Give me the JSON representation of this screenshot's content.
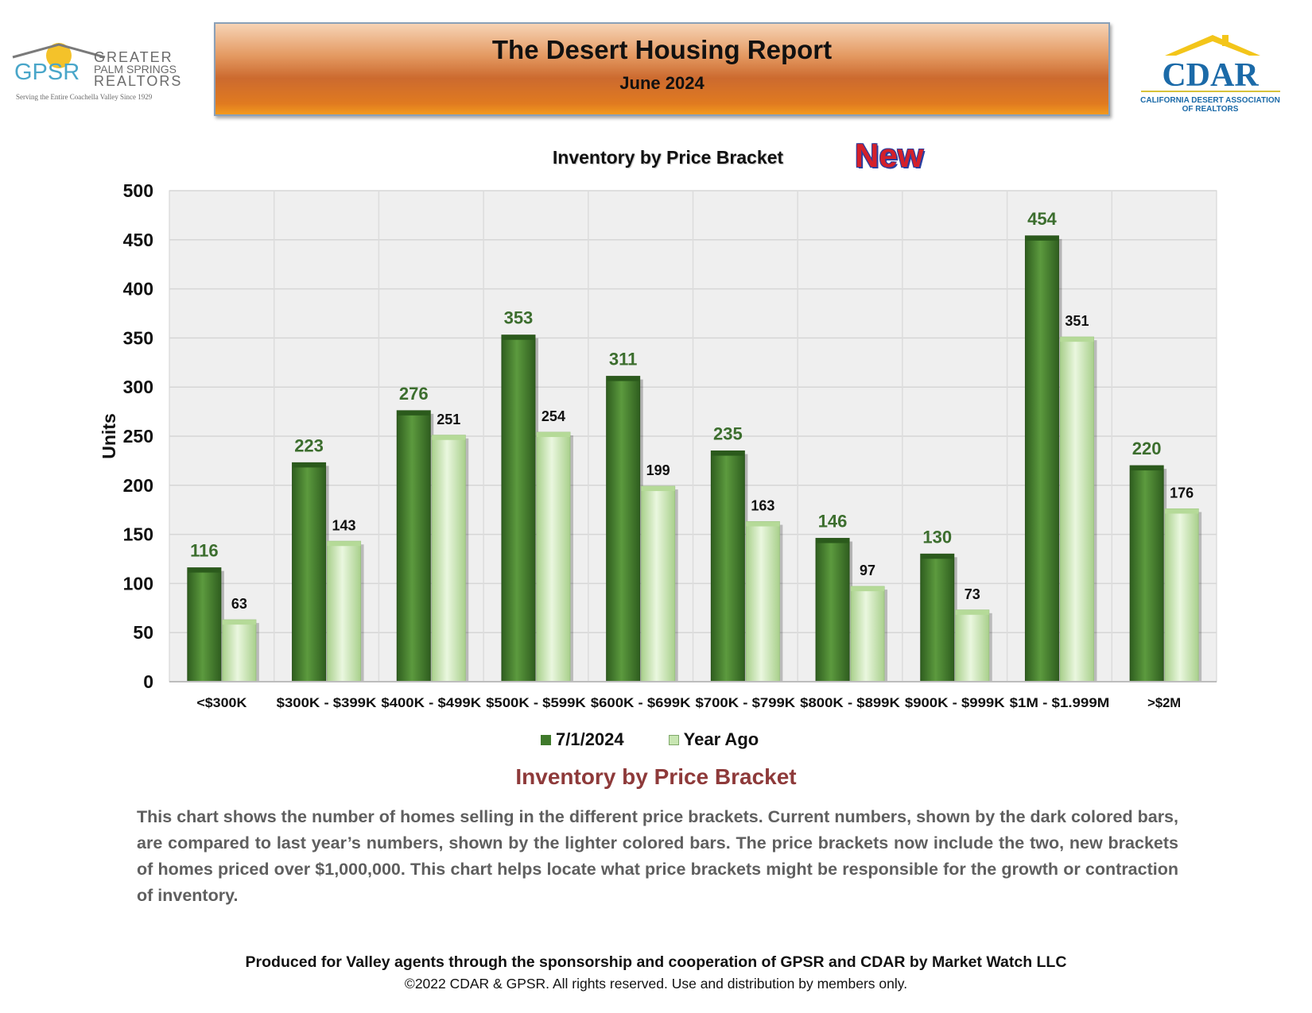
{
  "header": {
    "title": "The Desert Housing Report",
    "subtitle": "June 2024",
    "new_badge": "New"
  },
  "logos": {
    "left_abbrev": "GPSR",
    "left_line1": "GREATER",
    "left_line2": "PALM SPRINGS",
    "left_line3": "REALTORS",
    "left_tagline": "Serving the Entire Coachella Valley Since 1929",
    "right_abbrev": "CDAR",
    "right_line1": "CALIFORNIA DESERT ASSOCIATION",
    "right_line2": "OF REALTORS"
  },
  "chart_data": {
    "type": "bar",
    "title": "Inventory by Price Bracket",
    "xlabel": "",
    "ylabel": "Units",
    "ylim": [
      0,
      500
    ],
    "yticks": [
      0,
      50,
      100,
      150,
      200,
      250,
      300,
      350,
      400,
      450,
      500
    ],
    "grid": true,
    "legend_position": "bottom",
    "categories": [
      "<$300K",
      "$300K - $399K",
      "$400K - $499K",
      "$500K - $599K",
      "$600K - $699K",
      "$700K - $799K",
      "$800K - $899K",
      "$900K - $999K",
      "$1M - $1.999M",
      ">$2M"
    ],
    "series": [
      {
        "name": "7/1/2024",
        "values": [
          116,
          223,
          276,
          353,
          311,
          235,
          146,
          130,
          454,
          220
        ]
      },
      {
        "name": "Year Ago",
        "values": [
          63,
          143,
          251,
          254,
          199,
          163,
          97,
          73,
          351,
          176
        ]
      }
    ]
  },
  "colors": {
    "current_dark": "#3f7a2b",
    "current_mid": "#5c9a3e",
    "year_ago_light": "#c8e6b2",
    "year_ago_edge": "#e9f6de",
    "current_label": "#3c6e2e",
    "plot_bg": "#efefef",
    "heading": "#8e3a3a"
  },
  "description": {
    "heading": "Inventory by Price Bracket",
    "text": "This chart shows the number of homes selling in the different price brackets. Current numbers, shown by the dark colored bars, are compared to last year’s numbers, shown by the lighter colored bars. The price brackets now include the two, new brackets of homes priced over $1,000,000. This chart helps locate what price brackets might be responsible for the growth or contraction of inventory."
  },
  "footer": {
    "main": "Produced for Valley agents through the sponsorship and cooperation of GPSR and CDAR by Market Watch LLC",
    "copyright": "©2022 CDAR & GPSR.  All rights reserved.  Use and distribution by members only."
  }
}
